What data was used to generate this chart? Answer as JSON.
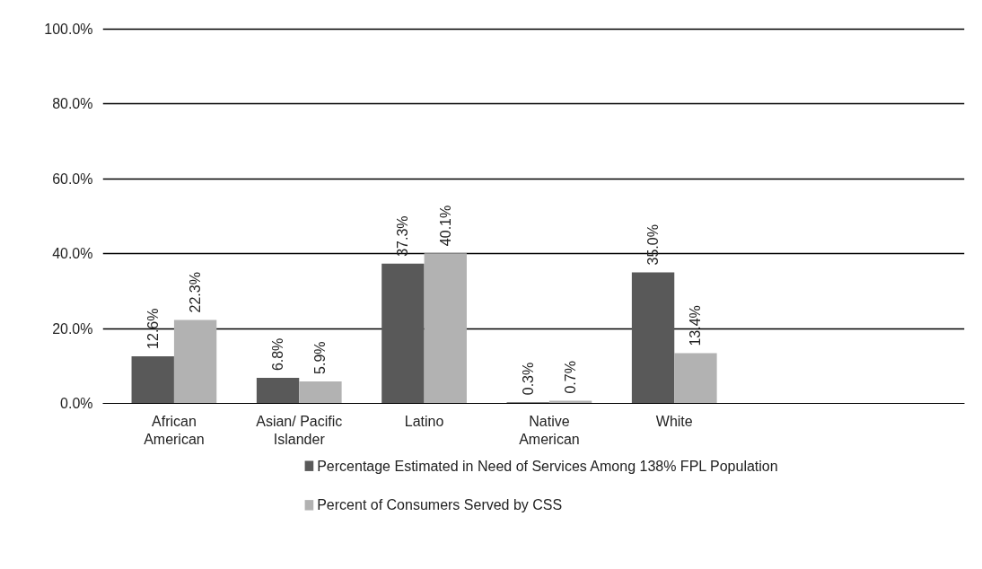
{
  "chart_data": {
    "type": "bar",
    "categories": [
      "African American",
      "Asian/ Pacific Islander",
      "Latino",
      "Native American",
      "White"
    ],
    "series": [
      {
        "name": "Percentage Estimated in Need of Services Among 138% FPL Population",
        "color": "#595959",
        "values": [
          12.6,
          6.8,
          37.3,
          0.3,
          35.0
        ],
        "value_labels": [
          "12.6%",
          "6.8%",
          "37.3%",
          "0.3%",
          "35.0%"
        ]
      },
      {
        "name": "Percent of Consumers Served by CSS",
        "color": "#b2b2b2",
        "values": [
          22.3,
          5.9,
          40.1,
          0.7,
          13.4
        ],
        "value_labels": [
          "22.3%",
          "5.9%",
          "40.1%",
          "0.7%",
          "13.4%"
        ]
      }
    ],
    "ylim": [
      0,
      100
    ],
    "yticks": [
      {
        "value": 0,
        "label": "0.0%"
      },
      {
        "value": 20,
        "label": "20.0%"
      },
      {
        "value": 40,
        "label": "40.0%"
      },
      {
        "value": 60,
        "label": "60.0%"
      },
      {
        "value": 80,
        "label": "80.0%"
      },
      {
        "value": 100,
        "label": "100.0%"
      }
    ],
    "grid": "y",
    "legend": "bottom"
  }
}
